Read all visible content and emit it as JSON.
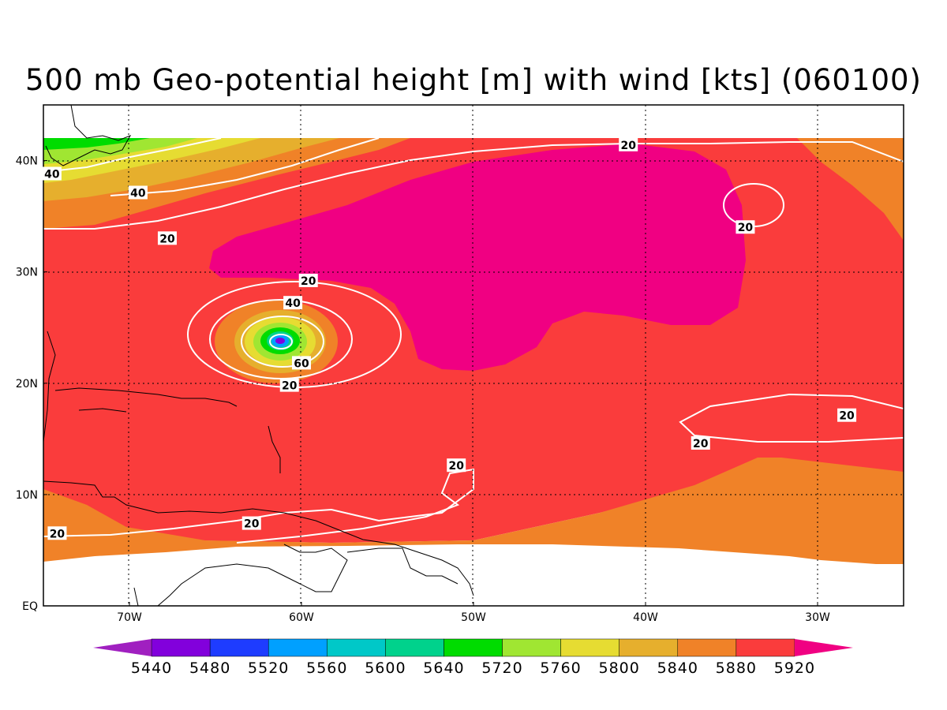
{
  "title": "500 mb Geo-potential height [m] with wind [kts] (060100)",
  "map": {
    "x_ticks": [
      {
        "lon": -70,
        "label": "70W"
      },
      {
        "lon": -60,
        "label": "60W"
      },
      {
        "lon": -50,
        "label": "50W"
      },
      {
        "lon": -40,
        "label": "40W"
      },
      {
        "lon": -30,
        "label": "30W"
      }
    ],
    "y_ticks": [
      {
        "lat": 0,
        "label": "EQ"
      },
      {
        "lat": 10,
        "label": "10N"
      },
      {
        "lat": 20,
        "label": "20N"
      },
      {
        "lat": 30,
        "label": "30N"
      },
      {
        "lat": 40,
        "label": "40N"
      }
    ],
    "lon_range": [
      -75,
      -25
    ],
    "lat_range": [
      0,
      45
    ],
    "grid": "dotted",
    "wind_speed_labels": [
      {
        "text": "20",
        "lon": -41,
        "lat": 41.4
      },
      {
        "text": "40",
        "lon": -74.5,
        "lat": 38.8
      },
      {
        "text": "40",
        "lon": -69.5,
        "lat": 37.1
      },
      {
        "text": "20",
        "lon": -67.8,
        "lat": 33.0
      },
      {
        "text": "20",
        "lon": -34.2,
        "lat": 34.0
      },
      {
        "text": "20",
        "lon": -59.6,
        "lat": 29.2
      },
      {
        "text": "40",
        "lon": -60.5,
        "lat": 27.2
      },
      {
        "text": "60",
        "lon": -60.0,
        "lat": 21.8
      },
      {
        "text": "20",
        "lon": -60.7,
        "lat": 19.8
      },
      {
        "text": "20",
        "lon": -28.3,
        "lat": 17.1
      },
      {
        "text": "20",
        "lon": -36.8,
        "lat": 14.6
      },
      {
        "text": "20",
        "lon": -51.0,
        "lat": 12.6
      },
      {
        "text": "20",
        "lon": -62.9,
        "lat": 7.4
      },
      {
        "text": "20",
        "lon": -74.2,
        "lat": 6.5
      }
    ]
  },
  "colorbar": {
    "labels": [
      "5440",
      "5480",
      "5520",
      "5560",
      "5600",
      "5640",
      "5720",
      "5760",
      "5800",
      "5840",
      "5880",
      "5920"
    ],
    "colors": [
      "#a020c0",
      "#8200dc",
      "#1e3cff",
      "#00a0ff",
      "#00c8c8",
      "#00d28c",
      "#00dc00",
      "#a0e632",
      "#e6dc32",
      "#e6af2d",
      "#f08228",
      "#fa3c3c",
      "#f00082"
    ]
  }
}
